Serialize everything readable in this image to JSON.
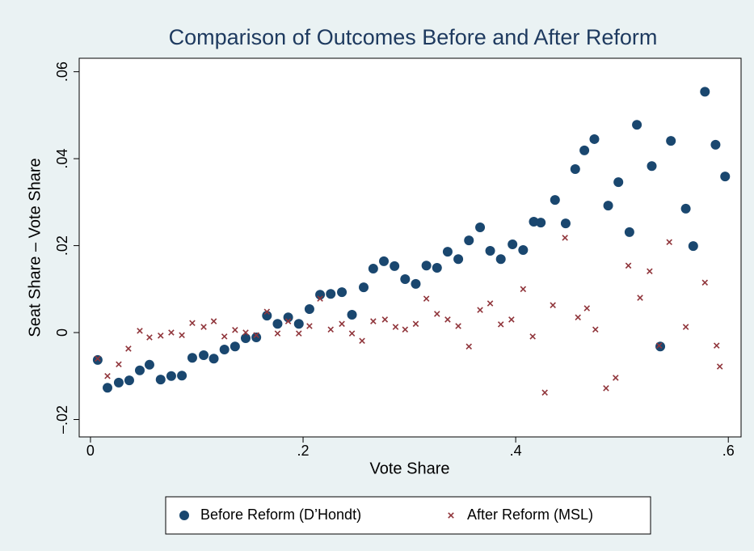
{
  "chart_data": {
    "type": "scatter",
    "title": "Comparison of Outcomes Before and After Reform",
    "x_label": "Vote Share",
    "y_label": "Seat Share – Vote Share",
    "xlim": [
      -0.0106,
      0.612
    ],
    "ylim": [
      -0.024,
      0.0631
    ],
    "xticks": [
      0,
      {
        "value": 0.2,
        "label": ".2"
      },
      {
        "value": 0.4,
        "label": ".4"
      },
      {
        "value": 0.6,
        "label": ".6"
      }
    ],
    "yticks": [
      {
        "value": -0.02,
        "label": "–.02"
      },
      0,
      {
        "value": 0.02,
        "label": ".02"
      },
      {
        "value": 0.04,
        "label": ".04"
      },
      {
        "value": 0.06,
        "label": ".06"
      }
    ],
    "grid": false,
    "legend": "bottom",
    "series": [
      {
        "name": "Before Reform (D’Hondt)",
        "color": "#1a476f",
        "marker": "circle",
        "x": [
          0.0068,
          0.016,
          0.0266,
          0.0365,
          0.0464,
          0.0555,
          0.066,
          0.076,
          0.086,
          0.0958,
          0.1065,
          0.116,
          0.126,
          0.136,
          0.146,
          0.156,
          0.166,
          0.176,
          0.186,
          0.196,
          0.206,
          0.216,
          0.226,
          0.2365,
          0.246,
          0.257,
          0.266,
          0.276,
          0.286,
          0.296,
          0.306,
          0.316,
          0.326,
          0.336,
          0.346,
          0.356,
          0.3665,
          0.376,
          0.386,
          0.397,
          0.407,
          0.417,
          0.4236,
          0.437,
          0.447,
          0.456,
          0.4646,
          0.474,
          0.487,
          0.4966,
          0.507,
          0.514,
          0.528,
          0.536,
          0.546,
          0.56,
          0.567,
          0.578,
          0.588,
          0.597
        ],
        "values": [
          -0.0063,
          -0.0127,
          -0.0115,
          -0.011,
          -0.0087,
          -0.0074,
          -0.0108,
          -0.01,
          -0.0099,
          -0.0058,
          -0.0052,
          -0.006,
          -0.0039,
          -0.0032,
          -0.0013,
          -0.0011,
          0.0039,
          0.002,
          0.0035,
          0.002,
          0.0054,
          0.0087,
          0.0089,
          0.0093,
          0.0041,
          0.0104,
          0.0147,
          0.0164,
          0.0153,
          0.0123,
          0.0112,
          0.0154,
          0.0149,
          0.0186,
          0.0169,
          0.0212,
          0.0242,
          0.0188,
          0.0169,
          0.0203,
          0.019,
          0.0255,
          0.0253,
          0.0305,
          0.0251,
          0.0376,
          0.0419,
          0.0445,
          0.0292,
          0.0346,
          0.0231,
          0.0478,
          0.0383,
          -0.0032,
          0.0441,
          0.0285,
          0.0199,
          0.0554,
          0.0432,
          0.0359
        ]
      },
      {
        "name": "After Reform (MSL)",
        "color": "#90353b",
        "marker": "x",
        "x": [
          0.0068,
          0.016,
          0.0266,
          0.0357,
          0.0464,
          0.0555,
          0.066,
          0.076,
          0.086,
          0.0958,
          0.1065,
          0.116,
          0.126,
          0.136,
          0.146,
          0.156,
          0.166,
          0.176,
          0.186,
          0.196,
          0.206,
          0.216,
          0.226,
          0.2365,
          0.246,
          0.2555,
          0.266,
          0.277,
          0.287,
          0.296,
          0.306,
          0.316,
          0.326,
          0.336,
          0.346,
          0.356,
          0.3665,
          0.376,
          0.386,
          0.396,
          0.407,
          0.416,
          0.4274,
          0.435,
          0.4464,
          0.4586,
          0.467,
          0.475,
          0.485,
          0.494,
          0.506,
          0.517,
          0.526,
          0.535,
          0.5445,
          0.56,
          0.578,
          0.589,
          0.592
        ],
        "values": [
          -0.006,
          -0.01,
          -0.0073,
          -0.0037,
          0.0004,
          -0.0011,
          -0.0007,
          0,
          -0.0006,
          0.0022,
          0.0013,
          0.0026,
          -0.0009,
          0.0006,
          0,
          -0.0006,
          0.0048,
          -0.0002,
          0.0026,
          -0.0002,
          0.0015,
          0.0078,
          0.0007,
          0.002,
          -0.0002,
          -0.0019,
          0.0026,
          0.003,
          0.0013,
          0.0007,
          0.002,
          0.0078,
          0.0043,
          0.003,
          0.0015,
          -0.0032,
          0.0052,
          0.0067,
          0.0019,
          0.003,
          0.01,
          -0.0009,
          -0.0138,
          0.0063,
          0.0218,
          0.0035,
          0.0056,
          0.0007,
          -0.0128,
          -0.0104,
          0.0154,
          0.008,
          0.0141,
          -0.003,
          0.0208,
          0.0013,
          0.0115,
          -0.003,
          -0.0078
        ]
      }
    ]
  }
}
